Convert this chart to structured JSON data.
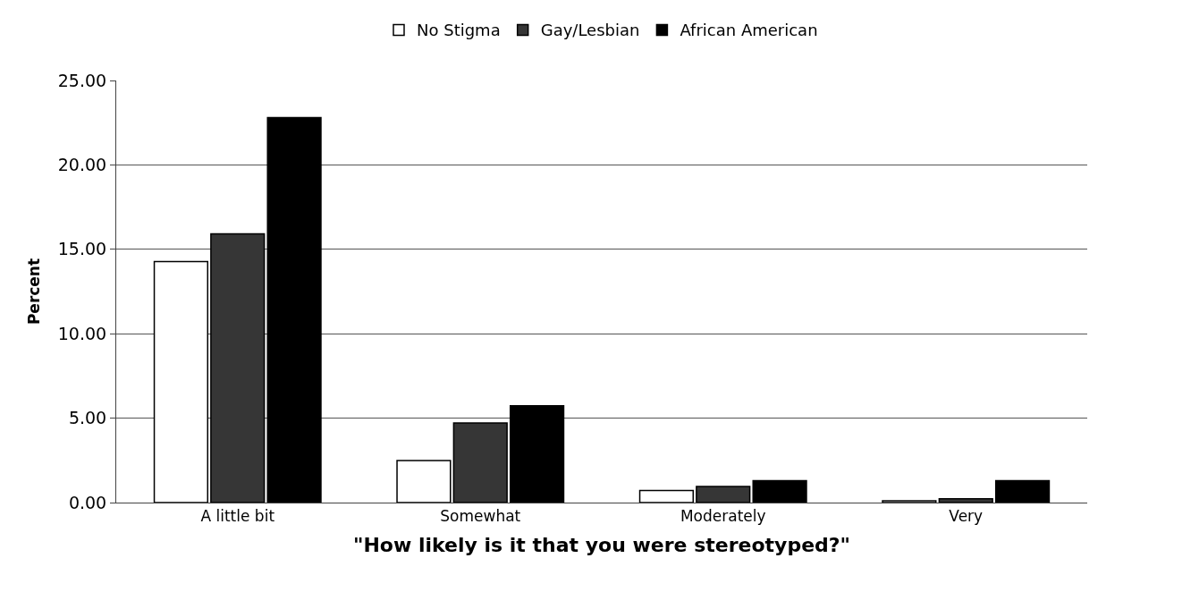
{
  "chart_data": {
    "type": "bar",
    "xlabel": "\"How likely is it that you were stereotyped?\"",
    "ylabel": "Percent",
    "categories": [
      "A little bit",
      "Somewhat",
      "Moderately",
      "Very"
    ],
    "series": [
      {
        "name": "No Stigma",
        "color": "#ffffff",
        "values": [
          14.27,
          2.49,
          0.72,
          0.1
        ]
      },
      {
        "name": "Gay/Lesbian",
        "color": "#363636",
        "values": [
          15.91,
          4.72,
          0.95,
          0.22
        ]
      },
      {
        "name": "African American",
        "color": "#000000",
        "values": [
          22.8,
          5.74,
          1.3,
          1.3
        ]
      }
    ],
    "ylim": [
      0,
      25
    ],
    "yticks": [
      {
        "value": 0,
        "label": "0.00"
      },
      {
        "value": 5,
        "label": "5.00"
      },
      {
        "value": 10,
        "label": "10.00"
      },
      {
        "value": 15,
        "label": "15.00"
      },
      {
        "value": 20,
        "label": "20.00"
      },
      {
        "value": 25,
        "label": "25.00"
      }
    ],
    "grid": "y",
    "legend": "top"
  }
}
